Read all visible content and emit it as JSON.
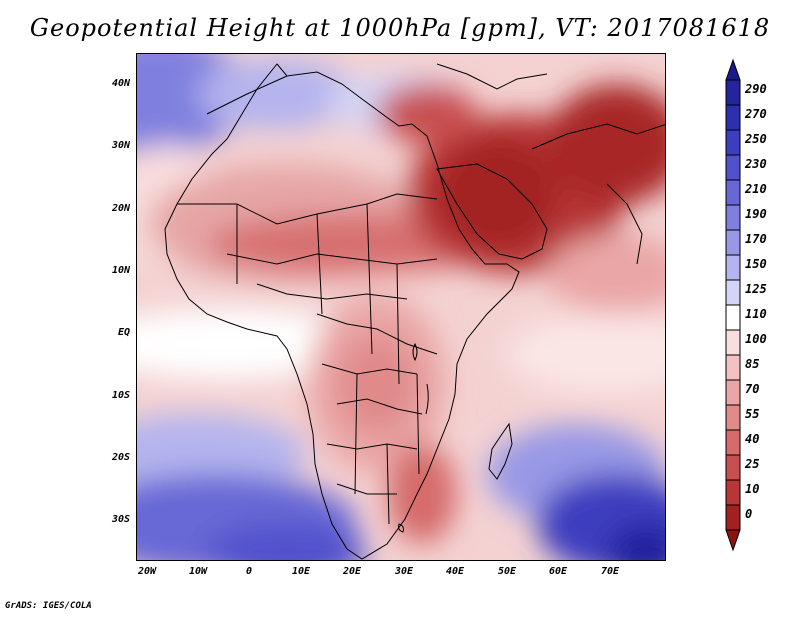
{
  "title": "Geopotential Height at 1000hPa [gpm], VT: 2017081618",
  "credit": "GrADS: IGES/COLA",
  "lat_labels": [
    "40N",
    "30N",
    "20N",
    "10N",
    "EQ",
    "10S",
    "20S",
    "30S"
  ],
  "lon_labels": [
    "20W",
    "10W",
    "0",
    "10E",
    "20E",
    "30E",
    "40E",
    "50E",
    "60E",
    "70E"
  ],
  "colorbar": {
    "labels": [
      "290",
      "270",
      "250",
      "230",
      "210",
      "190",
      "170",
      "150",
      "125",
      "110",
      "100",
      "85",
      "70",
      "55",
      "40",
      "25",
      "10",
      "0"
    ],
    "colors": [
      "#24249e",
      "#2e2eb0",
      "#3d3dc0",
      "#5151cc",
      "#6767d6",
      "#7f7fdf",
      "#9898e6",
      "#b4b4ee",
      "#d4d4f6",
      "#ffffff",
      "#f9dede",
      "#f2c2c2",
      "#eaa6a6",
      "#e08a8a",
      "#d56b6b",
      "#c84f4f",
      "#b83636",
      "#a32020"
    ],
    "top_arrow_color": "#1a1a8c",
    "bottom_arrow_color": "#8e1414"
  }
}
